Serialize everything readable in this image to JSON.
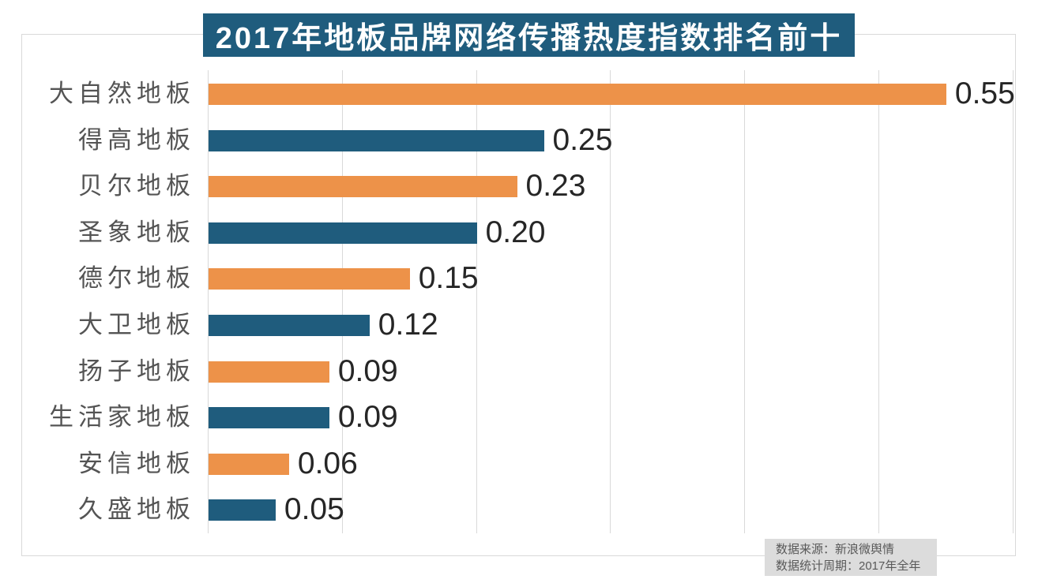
{
  "title": {
    "text": "2017年地板品牌网络传播热度指数排名前十",
    "bg_color": "#1f5c7d",
    "text_color": "#ffffff"
  },
  "source_note": {
    "line1": "数据来源：新浪微舆情",
    "line2": "数据统计周期：2017年全年",
    "bg_color": "#dcdcdc",
    "text_color": "#595959"
  },
  "chart_data": {
    "type": "bar",
    "orientation": "horizontal",
    "title": "2017年地板品牌网络传播热度指数排名前十",
    "categories": [
      "大自然地板",
      "得高地板",
      "贝尔地板",
      "圣象地板",
      "德尔地板",
      "大卫地板",
      "扬子地板",
      "生活家地板",
      "安信地板",
      "久盛地板"
    ],
    "values": [
      0.55,
      0.25,
      0.23,
      0.2,
      0.15,
      0.12,
      0.09,
      0.09,
      0.06,
      0.05
    ],
    "value_labels": [
      "0.55",
      "0.25",
      "0.23",
      "0.20",
      "0.15",
      "0.12",
      "0.09",
      "0.09",
      "0.06",
      "0.05"
    ],
    "bar_colors_alternating": [
      "#ed9249",
      "#1f5c7d"
    ],
    "xlabel": "",
    "ylabel": "",
    "xlim": [
      0,
      0.6
    ],
    "grid_interval": 0.1,
    "grid": true,
    "axis_tick_labels_shown": false,
    "legend": false,
    "gridline_color": "#d9d9d9",
    "category_label_color": "#545454",
    "value_label_color": "#262626",
    "source": [
      "数据来源：新浪微舆情",
      "数据统计周期：2017年全年"
    ]
  }
}
